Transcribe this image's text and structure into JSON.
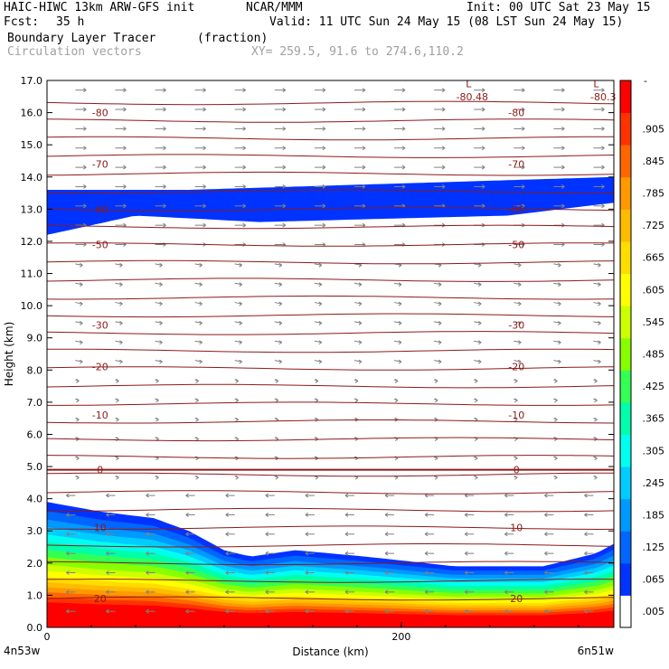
{
  "header": {
    "model": "HAIC-HIWC 13km ARW-GFS init",
    "org": "NCAR/MMM",
    "init": "Init: 00 UTC Sat 23 May 15",
    "fcst_label": "Fcst:",
    "fcst_value": "35 h",
    "valid": "Valid: 11 UTC Sun 24 May 15 (08 LST Sun 24 May 15)",
    "field1": "Boundary Layer Tracer",
    "field1_units": "(fraction)",
    "field2": "Circulation vectors",
    "xy": "XY= 259.5, 91.6 to 274.6,110.2"
  },
  "chart_data": {
    "type": "heatmap",
    "xlabel": "Distance (km)",
    "ylabel": "Height (km)",
    "xlim": [
      0,
      320
    ],
    "ylim": [
      0,
      17
    ],
    "x_tick_labels": [
      "0",
      "200"
    ],
    "x_tick_values": [
      0,
      200
    ],
    "y_ticks": [
      "0.0",
      "1.0",
      "2.0",
      "3.0",
      "4.0",
      "5.0",
      "6.0",
      "7.0",
      "8.0",
      "9.0",
      "10.0",
      "11.0",
      "12.0",
      "13.0",
      "14.0",
      "15.0",
      "16.0",
      "17.0"
    ],
    "endpoint_left": "4n53w",
    "endpoint_right": "6n51w",
    "colorbar": {
      "labels": [
        ".005",
        ".065",
        ".125",
        ".185",
        ".245",
        ".305",
        ".365",
        ".425",
        ".485",
        ".545",
        ".605",
        ".665",
        ".725",
        ".785",
        ".845",
        ".905"
      ],
      "top_label": "-",
      "colors": [
        "#ffffff",
        "#0033ff",
        "#0066ff",
        "#0099ff",
        "#00ccff",
        "#00ffee",
        "#00ffaa",
        "#33ff55",
        "#88ff00",
        "#ccff00",
        "#ffff00",
        "#ffdd00",
        "#ffbb00",
        "#ff9900",
        "#ff6600",
        "#ff3300",
        "#ff0000"
      ]
    },
    "boundary_layer_top_km": [
      {
        "x": 0,
        "z": 3.9
      },
      {
        "x": 30,
        "z": 3.6
      },
      {
        "x": 60,
        "z": 3.4
      },
      {
        "x": 80,
        "z": 3.0
      },
      {
        "x": 100,
        "z": 2.4
      },
      {
        "x": 115,
        "z": 2.2
      },
      {
        "x": 140,
        "z": 2.4
      },
      {
        "x": 180,
        "z": 2.2
      },
      {
        "x": 230,
        "z": 1.9
      },
      {
        "x": 280,
        "z": 1.9
      },
      {
        "x": 310,
        "z": 2.3
      },
      {
        "x": 320,
        "z": 2.6
      }
    ],
    "upper_tracer_layer_km": {
      "top": [
        {
          "x": 0,
          "z": 13.6
        },
        {
          "x": 80,
          "z": 13.6
        },
        {
          "x": 200,
          "z": 13.8
        },
        {
          "x": 320,
          "z": 14.0
        }
      ],
      "bottom": [
        {
          "x": 0,
          "z": 12.2
        },
        {
          "x": 50,
          "z": 12.8
        },
        {
          "x": 120,
          "z": 12.6
        },
        {
          "x": 260,
          "z": 12.8
        },
        {
          "x": 320,
          "z": 13.2
        }
      ]
    },
    "temperature_contours_C": [
      {
        "value": "-80",
        "z": 16.0
      },
      {
        "value": "-70",
        "z": 14.4
      },
      {
        "value": "-60",
        "z": 13.0
      },
      {
        "value": "-50",
        "z": 11.9
      },
      {
        "value": "-30",
        "z": 9.4
      },
      {
        "value": "-20",
        "z": 8.1
      },
      {
        "value": "-10",
        "z": 6.6
      },
      {
        "value": "0",
        "z": 4.9
      },
      {
        "value": "10",
        "z": 3.1
      },
      {
        "value": "20",
        "z": 0.9
      }
    ],
    "annotations": [
      {
        "text": "L",
        "x": 238,
        "z": 16.9
      },
      {
        "text": "-80.48",
        "x": 240,
        "z": 16.5
      },
      {
        "text": "L",
        "x": 310,
        "z": 16.9
      },
      {
        "text": "-80.3",
        "x": 314,
        "z": 16.5
      }
    ],
    "grid": false
  }
}
